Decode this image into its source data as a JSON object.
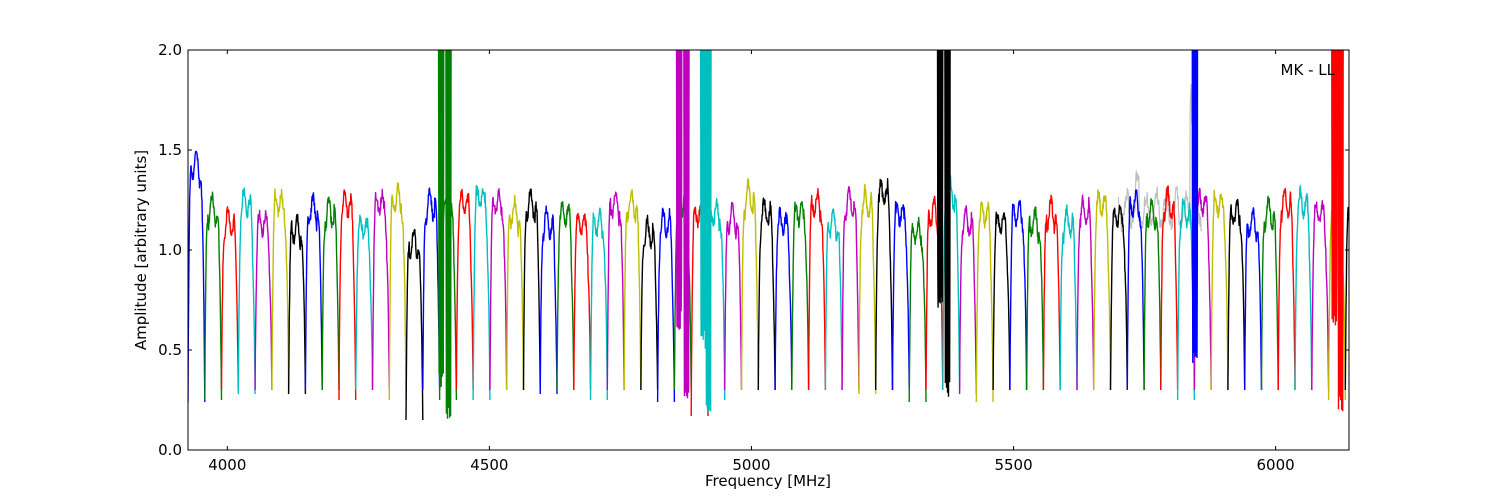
{
  "chart_data": {
    "type": "line",
    "title": "",
    "xlabel": "Frequency [MHz]",
    "ylabel": "Amplitude [arbitrary units]",
    "annotation": "MK - LL",
    "annotation_position": "top-right",
    "xlim": [
      3925,
      6140
    ],
    "ylim": [
      0.0,
      2.0
    ],
    "x_ticks": [
      4000,
      4500,
      5000,
      5500,
      6000
    ],
    "x_tick_labels": [
      "4000",
      "4500",
      "5000",
      "5500",
      "6000"
    ],
    "y_ticks": [
      0.0,
      0.5,
      1.0,
      1.5,
      2.0
    ],
    "y_tick_labels": [
      "0.0",
      "0.5",
      "1.0",
      "1.5",
      "2.0"
    ],
    "grid": false,
    "legend": "none",
    "color_cycle": [
      "#0000ff",
      "#008000",
      "#ff0000",
      "#00bfbf",
      "#bf00bf",
      "#bfbf00",
      "#000000"
    ],
    "background_series_color": "#c0c0c0",
    "channel_width_mhz": 32,
    "channels_x_start": 3925,
    "channels_x_end": 6140,
    "channel_edge_min": [
      0.24,
      0.25,
      0.3,
      0.28,
      0.3,
      0.3,
      0.28,
      0.3,
      0.3,
      0.25,
      0.3,
      0.3,
      0.25,
      0.15,
      0.3,
      0.25,
      0.3,
      0.25,
      0.3,
      0.3,
      0.3,
      0.28,
      0.3,
      0.3,
      0.25,
      0.3,
      0.3,
      0.3,
      0.24,
      0.3,
      0.17,
      0.25,
      0.3,
      0.3,
      0.3,
      0.3,
      0.3,
      0.3,
      0.3,
      0.3,
      0.28,
      0.3,
      0.3,
      0.24,
      0.3,
      0.3,
      0.28,
      0.24,
      0.3,
      0.3,
      0.3,
      0.3,
      0.3,
      0.3,
      0.3,
      0.3,
      0.3,
      0.3,
      0.3,
      0.25,
      0.3,
      0.3,
      0.3,
      0.3,
      0.3,
      0.3,
      0.3,
      0.3,
      0.25,
      0.3,
      0.18
    ],
    "channel_plateau": [
      1.45,
      1.22,
      1.15,
      1.25,
      1.15,
      1.25,
      1.12,
      1.22,
      1.2,
      1.25,
      1.12,
      1.25,
      1.28,
      1.05,
      1.25,
      1.2,
      1.25,
      1.28,
      1.25,
      1.2,
      1.25,
      1.15,
      1.2,
      1.15,
      1.15,
      1.25,
      1.25,
      1.1,
      1.15,
      1.25,
      1.2,
      1.2,
      1.18,
      1.28,
      1.2,
      1.15,
      1.2,
      1.25,
      1.15,
      1.25,
      1.25,
      1.3,
      1.2,
      1.1,
      1.2,
      1.3,
      1.15,
      1.2,
      1.15,
      1.2,
      1.15,
      1.2,
      1.15,
      1.2,
      1.25,
      1.18,
      1.25,
      1.2,
      1.25,
      1.2,
      1.25,
      1.25,
      1.2,
      1.15,
      1.2,
      1.25,
      1.25,
      1.2,
      1.15,
      1.2,
      1.2
    ],
    "spikes": [
      {
        "x": 4408,
        "y_max": 2.0,
        "y_min": 0.3,
        "color": "#008000"
      },
      {
        "x": 4422,
        "y_max": 2.0,
        "y_min": 0.15,
        "color": "#008000"
      },
      {
        "x": 4862,
        "y_max": 2.0,
        "y_min": 0.6,
        "color": "#bf00bf"
      },
      {
        "x": 4876,
        "y_max": 2.0,
        "y_min": 0.25,
        "color": "#bf00bf"
      },
      {
        "x": 4908,
        "y_max": 2.0,
        "y_min": 0.5,
        "color": "#00bfbf"
      },
      {
        "x": 4918,
        "y_max": 2.0,
        "y_min": 0.17,
        "color": "#00bfbf"
      },
      {
        "x": 5360,
        "y_max": 2.0,
        "y_min": 0.7,
        "color": "#000000"
      },
      {
        "x": 5374,
        "y_max": 1.8,
        "y_min": 0.25,
        "color": "#000000"
      },
      {
        "x": 5846,
        "y_max": 1.8,
        "y_min": 0.4,
        "color": "#0000ff"
      },
      {
        "x": 6112,
        "y_max": 2.0,
        "y_min": 0.6,
        "color": "#ff0000"
      },
      {
        "x": 6124,
        "y_max": 2.0,
        "y_min": 0.18,
        "color": "#ff0000"
      }
    ]
  }
}
